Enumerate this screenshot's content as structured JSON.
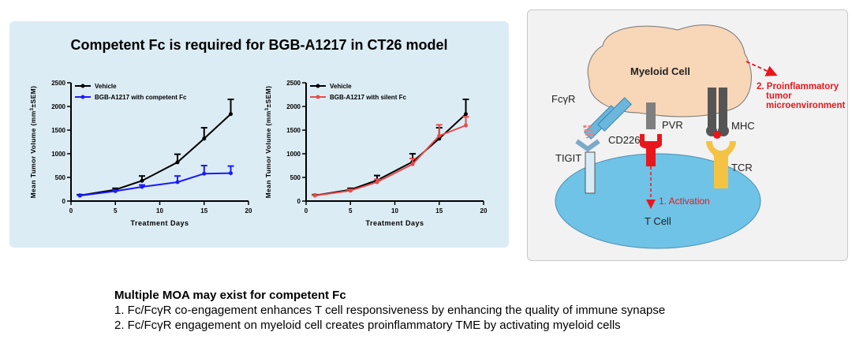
{
  "title": "Competent Fc is required for BGB-A1217 in CT26 model",
  "chart_data": [
    {
      "type": "line",
      "xlabel": "Treatment Days",
      "ylabel_main": "Mean Tumor Volume (mm",
      "ylabel_sup": "3",
      "ylabel_tail": "±SEM)",
      "xlim": [
        0,
        20
      ],
      "ylim": [
        0,
        2500
      ],
      "xticks": [
        "0",
        "5",
        "10",
        "15",
        "20"
      ],
      "yticks": [
        "0",
        "500",
        "1000",
        "1500",
        "2000",
        "2500"
      ],
      "x": [
        1,
        5,
        8,
        12,
        15,
        18
      ],
      "series": [
        {
          "name": "Vehicle",
          "color": "#000000",
          "values": [
            120,
            240,
            430,
            820,
            1320,
            1840
          ],
          "err": [
            15,
            30,
            100,
            170,
            230,
            310
          ]
        },
        {
          "name": "BGB-A1217 with competent Fc",
          "color": "#1a1aff",
          "values": [
            115,
            210,
            300,
            400,
            580,
            590
          ],
          "err": [
            10,
            20,
            40,
            130,
            170,
            150
          ]
        }
      ]
    },
    {
      "type": "line",
      "xlabel": "Treatment Days",
      "ylabel_main": "Mean Tumor Volume (mm",
      "ylabel_sup": "3",
      "ylabel_tail": "±SEM)",
      "xlim": [
        0,
        20
      ],
      "ylim": [
        0,
        2500
      ],
      "xticks": [
        "0",
        "5",
        "10",
        "15",
        "20"
      ],
      "yticks": [
        "0",
        "500",
        "1000",
        "1500",
        "2000",
        "2500"
      ],
      "x": [
        1,
        5,
        8,
        12,
        15,
        18
      ],
      "series": [
        {
          "name": "Vehicle",
          "color": "#000000",
          "values": [
            120,
            240,
            440,
            830,
            1320,
            1840
          ],
          "err": [
            15,
            30,
            100,
            170,
            230,
            310
          ]
        },
        {
          "name": "BGB-A1217 with silent Fc",
          "color": "#e84a4a",
          "values": [
            115,
            220,
            400,
            780,
            1380,
            1600
          ],
          "err": [
            10,
            25,
            60,
            120,
            230,
            180
          ]
        }
      ]
    }
  ],
  "diagram": {
    "myeloid_cell": "Myeloid Cell",
    "t_cell": "T Cell",
    "fcgr": "FcγR",
    "tigit": "TIGIT",
    "cd226": "CD226",
    "pvr": "PVR",
    "mhc": "MHC",
    "tcr": "TCR",
    "activation": "1. Activation",
    "proinflam_1": "2. Proinflammatory",
    "proinflam_2": "tumor",
    "proinflam_3": "microenvironment"
  },
  "notes": {
    "heading": "Multiple MOA may exist for competent Fc",
    "items": [
      "1.  Fc/FcγR co-engagement enhances T cell responsiveness by enhancing the quality of immune synapse",
      "2.  Fc/FcγR engagement on myeloid cell creates proinflammatory TME by activating myeloid cells"
    ]
  }
}
